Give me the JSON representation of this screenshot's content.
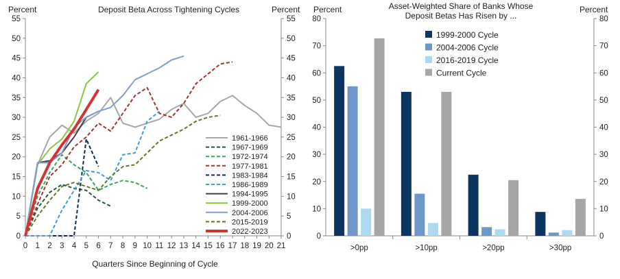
{
  "chart_data": [
    {
      "type": "line",
      "title": "Deposit Beta Across Tightening  Cycles",
      "ylabel_left": "Percent",
      "ylabel_right": "Percent",
      "xlabel": "Quarters Since Beginning of Cycle",
      "xlim": [
        0,
        21
      ],
      "ylim": [
        0,
        55
      ],
      "x_ticks": [
        "0",
        "1",
        "2",
        "3",
        "4",
        "5",
        "6",
        "7",
        "8",
        "9",
        "10",
        "11",
        "12",
        "13",
        "14",
        "15",
        "16",
        "17",
        "18",
        "19",
        "20",
        "21"
      ],
      "y_ticks": [
        "0",
        "5",
        "10",
        "15",
        "20",
        "25",
        "30",
        "35",
        "40",
        "45",
        "50",
        "55"
      ],
      "grid": false,
      "legend_position": "right",
      "series": [
        {
          "name": "1961-1966",
          "color": "#a6a6a6",
          "dash": "solid",
          "width": 2,
          "x": [
            0,
            1,
            2,
            3,
            4,
            5,
            6,
            7,
            8,
            9,
            10,
            11,
            12,
            13,
            14,
            15,
            16,
            17,
            18,
            19,
            20,
            21
          ],
          "y": [
            0,
            18,
            25,
            28,
            26,
            29,
            31,
            35,
            28.5,
            27.5,
            28.5,
            29.5,
            32,
            33.5,
            30,
            31,
            34,
            35.5,
            33,
            31,
            28,
            27.5
          ]
        },
        {
          "name": "1967-1969",
          "color": "#1e5a32",
          "dash": "dashed",
          "width": 2,
          "x": [
            0,
            1,
            2,
            3,
            4,
            5,
            6,
            7
          ],
          "y": [
            0,
            7,
            11,
            13,
            12,
            11.5,
            9,
            7.5
          ]
        },
        {
          "name": "1972-1974",
          "color": "#3aa05a",
          "dash": "dashed",
          "width": 2,
          "x": [
            0,
            1,
            2,
            3,
            4,
            5,
            6,
            7,
            8,
            9,
            10
          ],
          "y": [
            0,
            10,
            16,
            20.5,
            18,
            16,
            11.5,
            13,
            14,
            13.5,
            12
          ]
        },
        {
          "name": "1977-1981",
          "color": "#a0332f",
          "dash": "dashed",
          "width": 2,
          "x": [
            0,
            1,
            2,
            3,
            4,
            5,
            6,
            7,
            8,
            9,
            10,
            11,
            12,
            13,
            14,
            15,
            16,
            17
          ],
          "y": [
            0,
            8,
            15,
            18,
            22.5,
            25,
            28.5,
            26.5,
            31,
            35.5,
            37.5,
            31,
            30,
            33.5,
            38.5,
            41,
            43.5,
            44
          ]
        },
        {
          "name": "1983-1984",
          "color": "#0b2a4a",
          "dash": "dashed",
          "width": 2,
          "x": [
            0,
            1,
            2,
            3,
            4,
            5,
            6
          ],
          "y": [
            0,
            0,
            0,
            0,
            0,
            24.5,
            17.5
          ]
        },
        {
          "name": "1986-1989",
          "color": "#3b9bd8",
          "dash": "dashed",
          "width": 2,
          "x": [
            0,
            1,
            2,
            3,
            4,
            5,
            6,
            7,
            8,
            9,
            10,
            11
          ],
          "y": [
            0,
            0,
            0,
            6.5,
            11.5,
            16.5,
            16,
            14,
            20.5,
            21,
            29,
            31.5
          ]
        },
        {
          "name": "1994-1995",
          "color": "#404040",
          "dash": "solid",
          "width": 2,
          "x": [
            0,
            1,
            2,
            3,
            4,
            5,
            6
          ],
          "y": [
            0,
            18.5,
            19,
            21,
            25,
            30,
            31.5
          ]
        },
        {
          "name": "1999-2000",
          "color": "#8cc63f",
          "dash": "solid",
          "width": 2,
          "x": [
            0,
            1,
            2,
            3,
            4,
            5,
            6
          ],
          "y": [
            0,
            18,
            22,
            24.5,
            29,
            38.5,
            41.5
          ]
        },
        {
          "name": "2004-2006",
          "color": "#7f9fcf",
          "dash": "solid",
          "width": 2,
          "x": [
            0,
            1,
            2,
            3,
            4,
            5,
            6,
            7,
            8,
            9,
            10,
            11,
            12,
            13
          ],
          "y": [
            0,
            18.5,
            18.5,
            21,
            27.5,
            30,
            31.5,
            32.5,
            35.5,
            39.5,
            41,
            42.5,
            44.5,
            45.5
          ]
        },
        {
          "name": "2015-2019",
          "color": "#5a7a24",
          "dash": "dashed",
          "width": 2,
          "x": [
            0,
            1,
            2,
            3,
            4,
            5,
            6,
            7,
            8,
            9,
            10,
            11,
            12,
            13,
            14,
            15,
            16
          ],
          "y": [
            0,
            5,
            9,
            12.5,
            13.5,
            12.5,
            11.5,
            15,
            17.5,
            18,
            21,
            24,
            25.5,
            27,
            29,
            30,
            30.5
          ]
        },
        {
          "name": "2022-2023",
          "color": "#d33333",
          "dash": "solid",
          "width": 4,
          "x": [
            0,
            1,
            2,
            3,
            4,
            5,
            6
          ],
          "y": [
            0,
            12,
            18.5,
            23,
            27,
            32,
            37
          ]
        }
      ]
    },
    {
      "type": "bar",
      "title_line1": "Asset-Weighted Share of Banks Whose",
      "title_line2": "Deposit Betas Has Risen by ...",
      "ylabel_left": "Percent",
      "ylabel_right": "Percent",
      "ylim": [
        0,
        80
      ],
      "y_ticks": [
        "0",
        "10",
        "20",
        "30",
        "40",
        "50",
        "60",
        "70",
        "80"
      ],
      "categories": [
        ">0pp",
        ">10pp",
        ">20pp",
        ">30pp"
      ],
      "grid": false,
      "legend_position": "top-center",
      "series": [
        {
          "name": "1999-2000 Cycle",
          "color": "#0d3562",
          "values": [
            62.5,
            53,
            22.5,
            8.8
          ]
        },
        {
          "name": "2004-2006 Cycle",
          "color": "#6e96c8",
          "values": [
            55,
            15.5,
            3.2,
            1.2
          ]
        },
        {
          "name": "2016-2019 Cycle",
          "color": "#add8f2",
          "values": [
            10,
            4.7,
            2.4,
            2.1
          ]
        },
        {
          "name": "Current Cycle",
          "color": "#a6a6a6",
          "values": [
            72.7,
            53,
            20.5,
            13.6
          ]
        }
      ]
    }
  ]
}
